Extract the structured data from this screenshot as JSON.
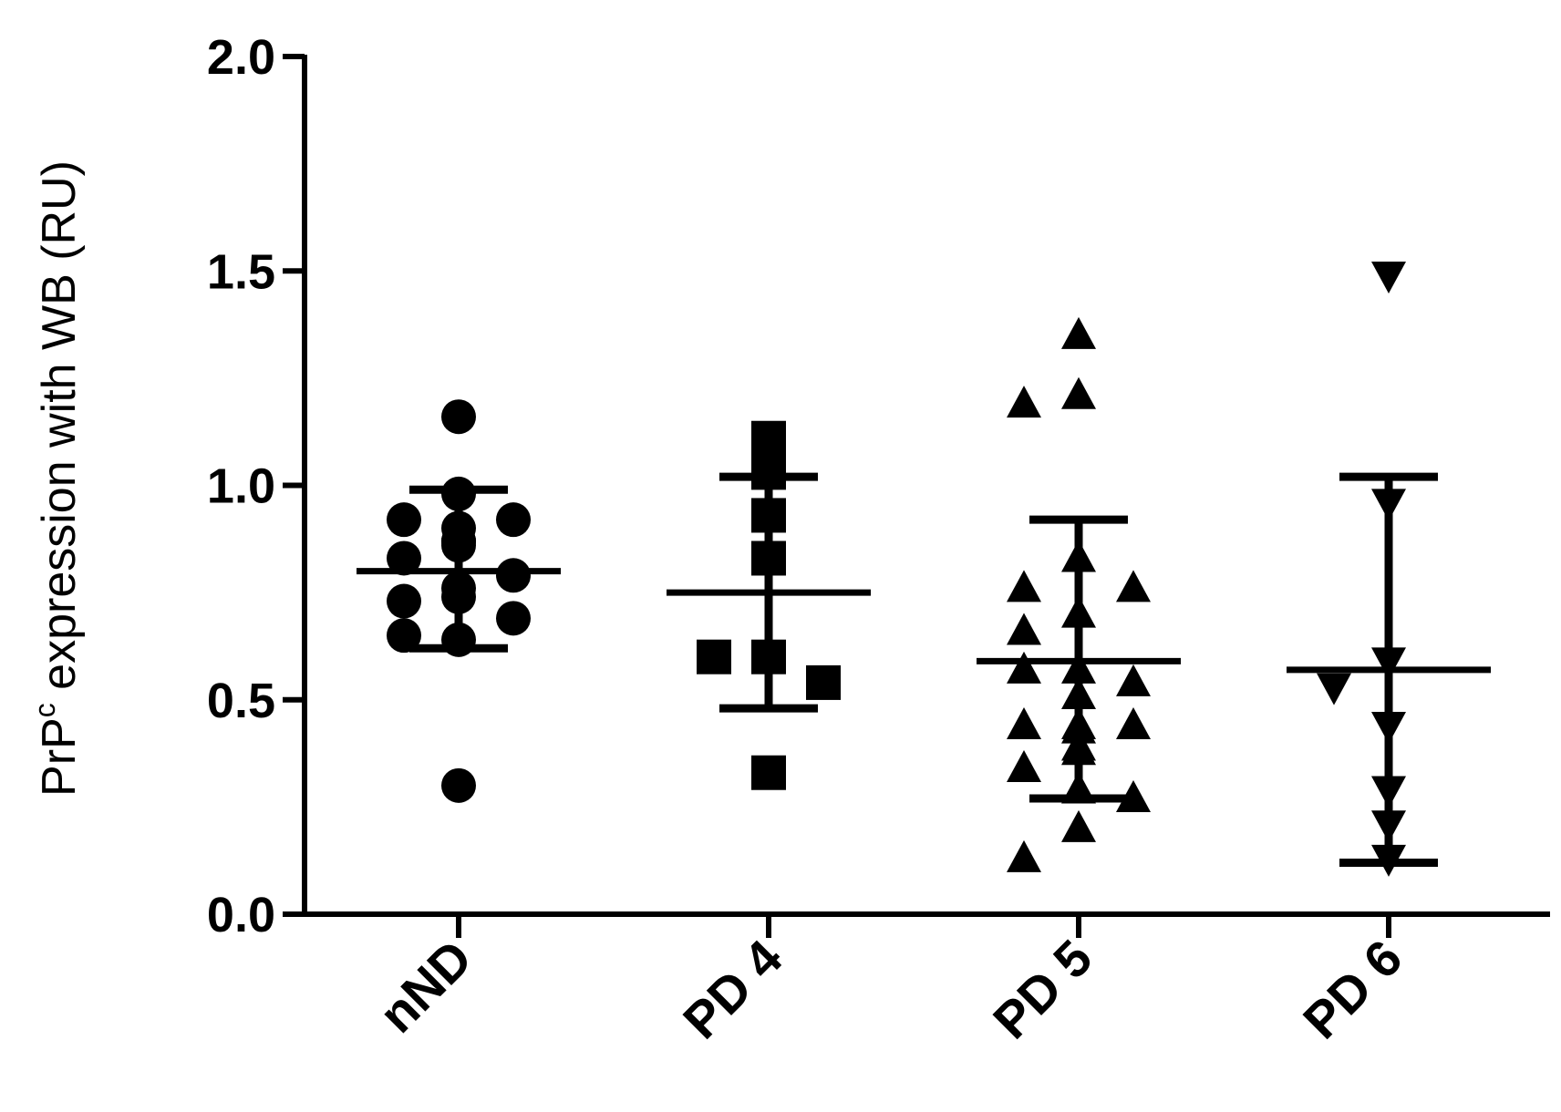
{
  "chart_data": {
    "type": "scatter",
    "title": "",
    "xlabel": "",
    "ylabel": {
      "prefix": "PrP",
      "superscript": "c",
      "suffix": " expression with WB (RU)"
    },
    "ylim": [
      0,
      2.0
    ],
    "yticks": [
      "0.0",
      "0.5",
      "1.0",
      "1.5",
      "2.0"
    ],
    "grid": false,
    "categories": [
      "nND",
      "PD 4",
      "PD 5",
      "PD 6"
    ],
    "series": [
      {
        "category": "nND",
        "marker": "circle",
        "values": [
          1.16,
          0.98,
          0.92,
          0.9,
          0.92,
          0.87,
          0.87,
          0.86,
          0.83,
          0.87,
          0.79,
          0.74,
          0.76,
          0.73,
          0.69,
          0.64,
          0.65,
          0.3
        ],
        "mean": 0.8,
        "err_upper": 0.99,
        "err_lower": 0.62
      },
      {
        "category": "PD 4",
        "marker": "square",
        "values": [
          1.11,
          1.03,
          0.93,
          0.83,
          0.6,
          0.6,
          0.54,
          0.33
        ],
        "mean": 0.75,
        "err_upper": 1.02,
        "err_lower": 0.48
      },
      {
        "category": "PD 5",
        "marker": "triangle-up",
        "values": [
          1.35,
          1.21,
          1.19,
          0.83,
          0.76,
          0.76,
          0.7,
          0.66,
          0.57,
          0.57,
          0.54,
          0.51,
          0.44,
          0.44,
          0.44,
          0.43,
          0.39,
          0.38,
          0.34,
          0.29,
          0.27,
          0.2,
          0.13
        ],
        "mean": 0.59,
        "err_upper": 0.92,
        "err_lower": 0.27
      },
      {
        "category": "PD 6",
        "marker": "triangle-down",
        "values": [
          1.49,
          0.96,
          0.59,
          0.53,
          0.44,
          0.29,
          0.21,
          0.13
        ],
        "mean": 0.57,
        "err_upper": 1.02,
        "err_lower": 0.12
      }
    ]
  }
}
